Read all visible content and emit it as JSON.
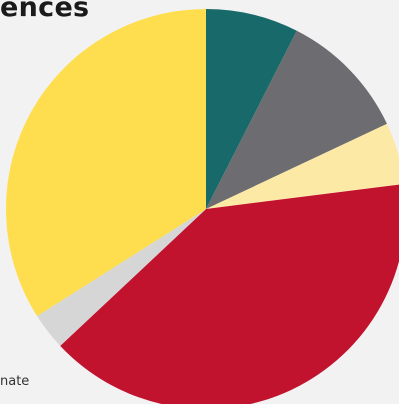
{
  "title_fragment": "ences",
  "note_fragment": "nate",
  "chart_data": {
    "type": "pie",
    "title": "",
    "start_angle_deg": 0,
    "direction": "clockwise",
    "slices": [
      {
        "value": 7.5,
        "color": "#176a69"
      },
      {
        "value": 10.5,
        "color": "#6d6c71"
      },
      {
        "value": 5.0,
        "color": "#fce9a6"
      },
      {
        "value": 40.0,
        "color": "#c1122e"
      },
      {
        "value": 3.0,
        "color": "#d6d6d6"
      },
      {
        "value": 34.0,
        "color": "#fede4e"
      }
    ]
  }
}
